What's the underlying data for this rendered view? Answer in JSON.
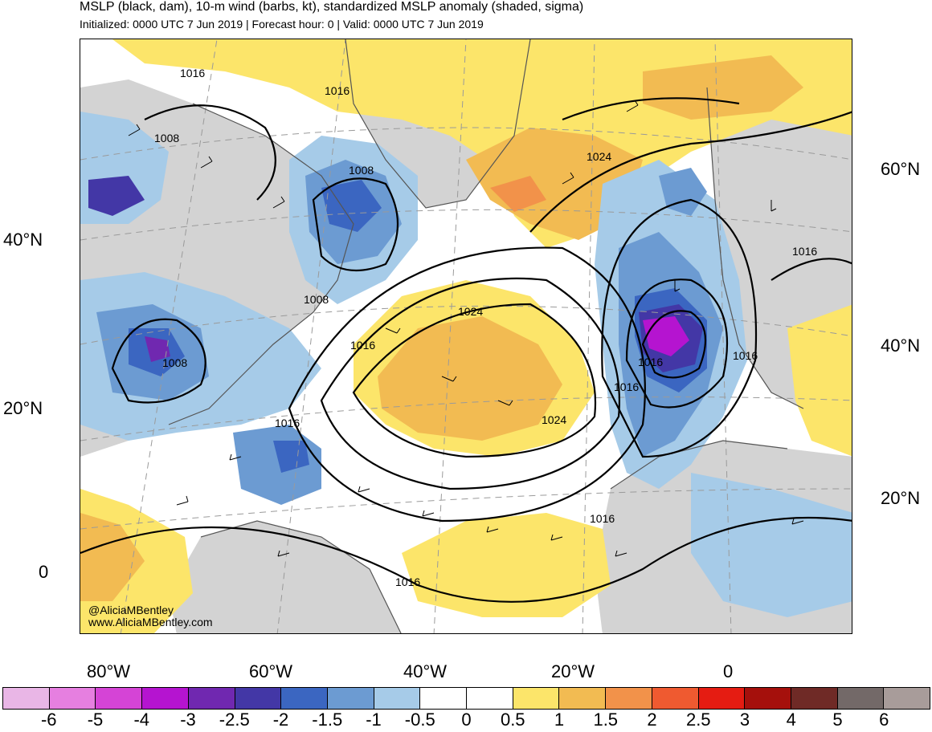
{
  "header": {
    "title": "MSLP (black, dam), 10-m wind (barbs, kt), standardized MSLP anomaly (shaded, sigma)",
    "subtitle": "Initialized: 0000 UTC 7 Jun 2019 | Forecast hour: 0 | Valid: 0000 UTC 7 Jun 2019"
  },
  "map": {
    "left_lat_labels": [
      "40°N",
      "20°N",
      "0"
    ],
    "right_lat_labels": [
      "60°N",
      "40°N",
      "20°N"
    ],
    "lon_labels": [
      "80°W",
      "60°W",
      "40°W",
      "20°W",
      "0"
    ],
    "isobar_labels": [
      "1016",
      "1016",
      "1008",
      "1008",
      "1024",
      "1008",
      "1016",
      "1024",
      "1008",
      "1016",
      "1016",
      "1016",
      "1016",
      "1016",
      "1024",
      "1016",
      "1016"
    ],
    "credits": [
      "@AliciaMBentley",
      "www.AliciaMBentley.com"
    ],
    "colors": {
      "ocean_neutral": "#ffffff",
      "land_neutral": "#d3d3d3",
      "anomaly_low_1": "#a6cbe8",
      "anomaly_low_2": "#6c9bd2",
      "anomaly_low_3": "#3b66c1",
      "anomaly_low_4": "#4337a6",
      "anomaly_low_5": "#7028b0",
      "anomaly_low_6": "#b514d0",
      "anomaly_high_1": "#fce56a",
      "anomaly_high_2": "#f2bb52",
      "anomaly_high_3": "#f2924a"
    }
  },
  "colorbar": {
    "labels": [
      "-6",
      "-5",
      "-4",
      "-3",
      "-2.5",
      "-2",
      "-1.5",
      "-1",
      "-0.5",
      "0",
      "0.5",
      "1",
      "1.5",
      "2",
      "2.5",
      "3",
      "4",
      "5",
      "6"
    ],
    "colors": [
      "#e9b6e6",
      "#e67fe0",
      "#d544d6",
      "#b514d0",
      "#7028b0",
      "#4337a6",
      "#3b66c1",
      "#6c9bd2",
      "#a6cbe8",
      "#ffffff",
      "#ffffff",
      "#fce56a",
      "#f2bb52",
      "#f2924a",
      "#ef5a30",
      "#e51c12",
      "#a5100c",
      "#6f2a26",
      "#736968",
      "#a89c9a"
    ]
  }
}
